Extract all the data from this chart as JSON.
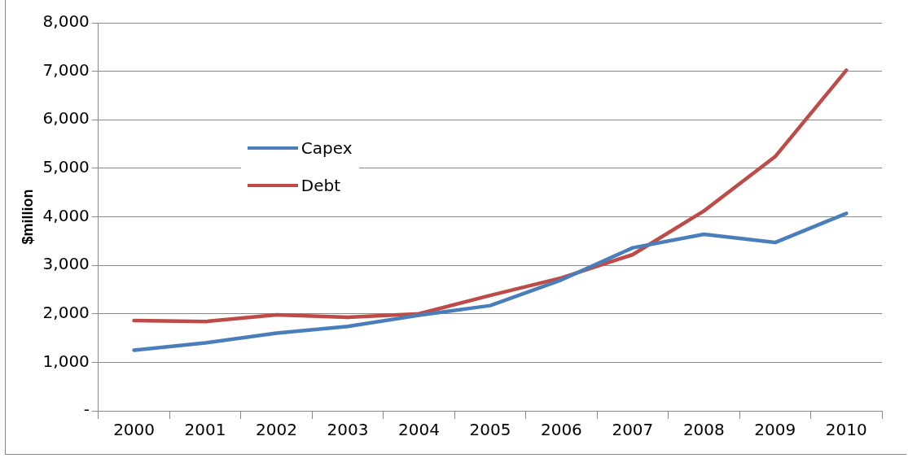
{
  "chart_data": {
    "type": "line",
    "ylabel": "$million",
    "categories": [
      "2000",
      "2001",
      "2002",
      "2003",
      "2004",
      "2005",
      "2006",
      "2007",
      "2008",
      "2009",
      "2010"
    ],
    "series": [
      {
        "name": "Capex",
        "color": "#4a7ebb",
        "values": [
          1250,
          1400,
          1600,
          1740,
          1970,
          2170,
          2700,
          3360,
          3640,
          3470,
          4070
        ]
      },
      {
        "name": "Debt",
        "color": "#be4b48",
        "values": [
          1860,
          1840,
          1980,
          1930,
          2000,
          2380,
          2740,
          3220,
          4120,
          5240,
          7020
        ]
      }
    ],
    "ylim": [
      0,
      8000
    ],
    "yticks": [
      {
        "value": 0,
        "label": "-"
      },
      {
        "value": 1000,
        "label": "1,000"
      },
      {
        "value": 2000,
        "label": "2,000"
      },
      {
        "value": 3000,
        "label": "3,000"
      },
      {
        "value": 4000,
        "label": "4,000"
      },
      {
        "value": 5000,
        "label": "5,000"
      },
      {
        "value": 6000,
        "label": "6,000"
      },
      {
        "value": 7000,
        "label": "7,000"
      },
      {
        "value": 8000,
        "label": "8,000"
      }
    ],
    "grid": "y",
    "legend": "top left",
    "marker": "none",
    "line_style": "solid"
  }
}
